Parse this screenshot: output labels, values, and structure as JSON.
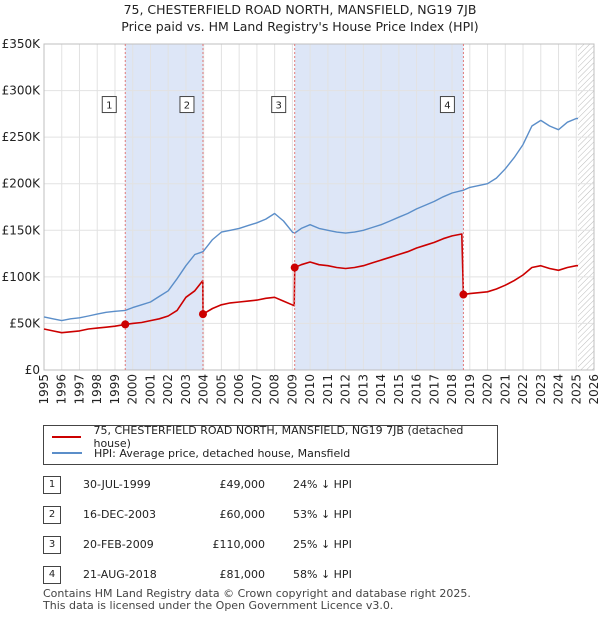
{
  "title": {
    "line1": "75, CHESTERFIELD ROAD NORTH, MANSFIELD, NG19 7JB",
    "line2": "Price paid vs. HM Land Registry's House Price Index (HPI)"
  },
  "colors": {
    "property": "#cc0000",
    "hpi": "#5b8ec9",
    "shade": "#dde6f7",
    "vline": "#e07a7a",
    "grid": "#e2e2e2"
  },
  "chart_data": {
    "type": "line",
    "xlim": [
      1995,
      2026
    ],
    "ylim": [
      0,
      350000
    ],
    "y_ticks": [
      0,
      50000,
      100000,
      150000,
      200000,
      250000,
      300000,
      350000
    ],
    "y_tick_labels": [
      "£0",
      "£50K",
      "£100K",
      "£150K",
      "£200K",
      "£250K",
      "£300K",
      "£350K"
    ],
    "x_ticks": [
      1995,
      1996,
      1997,
      1998,
      1999,
      2000,
      2001,
      2002,
      2003,
      2004,
      2005,
      2006,
      2007,
      2008,
      2009,
      2010,
      2011,
      2012,
      2013,
      2014,
      2015,
      2016,
      2017,
      2018,
      2019,
      2020,
      2021,
      2022,
      2023,
      2024,
      2025,
      2026
    ],
    "shaded_periods": [
      [
        1999.58,
        2003.96
      ],
      [
        2009.13,
        2018.64
      ]
    ],
    "future_hatch_from": 2025.1,
    "series": [
      {
        "name": "hpi",
        "points": [
          [
            1995.0,
            57000
          ],
          [
            1995.5,
            55000
          ],
          [
            1996.0,
            53000
          ],
          [
            1996.5,
            55000
          ],
          [
            1997.0,
            56000
          ],
          [
            1997.5,
            58000
          ],
          [
            1998.0,
            60000
          ],
          [
            1998.5,
            62000
          ],
          [
            1999.0,
            63000
          ],
          [
            1999.58,
            64000
          ],
          [
            2000.0,
            67000
          ],
          [
            2000.5,
            70000
          ],
          [
            2001.0,
            73000
          ],
          [
            2001.5,
            79000
          ],
          [
            2002.0,
            85000
          ],
          [
            2002.5,
            98000
          ],
          [
            2003.0,
            112000
          ],
          [
            2003.5,
            124000
          ],
          [
            2003.96,
            127000
          ],
          [
            2004.5,
            140000
          ],
          [
            2005.0,
            148000
          ],
          [
            2005.5,
            150000
          ],
          [
            2006.0,
            152000
          ],
          [
            2006.5,
            155000
          ],
          [
            2007.0,
            158000
          ],
          [
            2007.5,
            162000
          ],
          [
            2008.0,
            168000
          ],
          [
            2008.5,
            160000
          ],
          [
            2009.0,
            148000
          ],
          [
            2009.13,
            147000
          ],
          [
            2009.5,
            152000
          ],
          [
            2010.0,
            156000
          ],
          [
            2010.5,
            152000
          ],
          [
            2011.0,
            150000
          ],
          [
            2011.5,
            148000
          ],
          [
            2012.0,
            147000
          ],
          [
            2012.5,
            148000
          ],
          [
            2013.0,
            150000
          ],
          [
            2013.5,
            153000
          ],
          [
            2014.0,
            156000
          ],
          [
            2014.5,
            160000
          ],
          [
            2015.0,
            164000
          ],
          [
            2015.5,
            168000
          ],
          [
            2016.0,
            173000
          ],
          [
            2016.5,
            177000
          ],
          [
            2017.0,
            181000
          ],
          [
            2017.5,
            186000
          ],
          [
            2018.0,
            190000
          ],
          [
            2018.64,
            193000
          ],
          [
            2019.0,
            196000
          ],
          [
            2019.5,
            198000
          ],
          [
            2020.0,
            200000
          ],
          [
            2020.5,
            206000
          ],
          [
            2021.0,
            216000
          ],
          [
            2021.5,
            228000
          ],
          [
            2022.0,
            242000
          ],
          [
            2022.5,
            262000
          ],
          [
            2023.0,
            268000
          ],
          [
            2023.5,
            262000
          ],
          [
            2024.0,
            258000
          ],
          [
            2024.5,
            266000
          ],
          [
            2025.0,
            270000
          ],
          [
            2025.1,
            270000
          ]
        ]
      },
      {
        "name": "property",
        "points": [
          [
            1995.0,
            44000
          ],
          [
            1995.5,
            42000
          ],
          [
            1996.0,
            40000
          ],
          [
            1996.5,
            41000
          ],
          [
            1997.0,
            42000
          ],
          [
            1997.5,
            44000
          ],
          [
            1998.0,
            45000
          ],
          [
            1998.5,
            46000
          ],
          [
            1999.0,
            47000
          ],
          [
            1999.58,
            49000
          ],
          [
            2000.0,
            50000
          ],
          [
            2000.5,
            51000
          ],
          [
            2001.0,
            53000
          ],
          [
            2001.5,
            55000
          ],
          [
            2002.0,
            58000
          ],
          [
            2002.5,
            64000
          ],
          [
            2003.0,
            78000
          ],
          [
            2003.5,
            85000
          ],
          [
            2003.95,
            96000
          ],
          [
            2003.96,
            60000
          ],
          [
            2004.5,
            66000
          ],
          [
            2005.0,
            70000
          ],
          [
            2005.5,
            72000
          ],
          [
            2006.0,
            73000
          ],
          [
            2006.5,
            74000
          ],
          [
            2007.0,
            75000
          ],
          [
            2007.5,
            77000
          ],
          [
            2008.0,
            78000
          ],
          [
            2008.5,
            74000
          ],
          [
            2009.1,
            69000
          ],
          [
            2009.13,
            110000
          ],
          [
            2009.5,
            113000
          ],
          [
            2010.0,
            116000
          ],
          [
            2010.5,
            113000
          ],
          [
            2011.0,
            112000
          ],
          [
            2011.5,
            110000
          ],
          [
            2012.0,
            109000
          ],
          [
            2012.5,
            110000
          ],
          [
            2013.0,
            112000
          ],
          [
            2013.5,
            115000
          ],
          [
            2014.0,
            118000
          ],
          [
            2014.5,
            121000
          ],
          [
            2015.0,
            124000
          ],
          [
            2015.5,
            127000
          ],
          [
            2016.0,
            131000
          ],
          [
            2016.5,
            134000
          ],
          [
            2017.0,
            137000
          ],
          [
            2017.5,
            141000
          ],
          [
            2018.0,
            144000
          ],
          [
            2018.55,
            146000
          ],
          [
            2018.64,
            81000
          ],
          [
            2019.0,
            82000
          ],
          [
            2019.5,
            83000
          ],
          [
            2020.0,
            84000
          ],
          [
            2020.5,
            87000
          ],
          [
            2021.0,
            91000
          ],
          [
            2021.5,
            96000
          ],
          [
            2022.0,
            102000
          ],
          [
            2022.5,
            110000
          ],
          [
            2023.0,
            112000
          ],
          [
            2023.5,
            109000
          ],
          [
            2024.0,
            107000
          ],
          [
            2024.5,
            110000
          ],
          [
            2025.0,
            112000
          ],
          [
            2025.1,
            112000
          ]
        ]
      }
    ],
    "sales": [
      {
        "label": "1",
        "x": 1999.58,
        "value": 49000
      },
      {
        "label": "2",
        "x": 2003.96,
        "value": 60000
      },
      {
        "label": "3",
        "x": 2009.13,
        "value": 110000
      },
      {
        "label": "4",
        "x": 2018.64,
        "value": 81000
      }
    ],
    "sale_label_level": 285000
  },
  "legend": {
    "property_label": "75, CHESTERFIELD ROAD NORTH, MANSFIELD, NG19 7JB (detached house)",
    "hpi_label": "HPI: Average price, detached house, Mansfield"
  },
  "transactions": [
    {
      "num": "1",
      "date": "30-JUL-1999",
      "price": "£49,000",
      "delta": "24% ↓ HPI"
    },
    {
      "num": "2",
      "date": "16-DEC-2003",
      "price": "£60,000",
      "delta": "53% ↓ HPI"
    },
    {
      "num": "3",
      "date": "20-FEB-2009",
      "price": "£110,000",
      "delta": "25% ↓ HPI"
    },
    {
      "num": "4",
      "date": "21-AUG-2018",
      "price": "£81,000",
      "delta": "58% ↓ HPI"
    }
  ],
  "footer": {
    "line1": "Contains HM Land Registry data © Crown copyright and database right 2025.",
    "line2": "This data is licensed under the Open Government Licence v3.0."
  }
}
